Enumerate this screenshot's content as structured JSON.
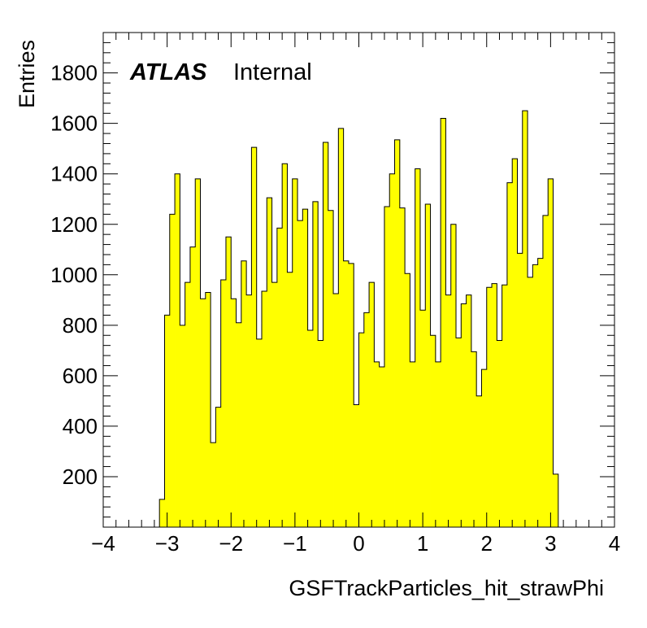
{
  "chart_data": {
    "type": "histogram",
    "xlabel": "GSFTrackParticles_hit_strawPhi",
    "ylabel": "Entries",
    "label_bold": "ATLAS",
    "label_normal": "Internal",
    "xlim": [
      -4,
      4
    ],
    "ylim": [
      0,
      1960
    ],
    "x_ticks": [
      -4,
      -3,
      -2,
      -1,
      0,
      1,
      2,
      3,
      4
    ],
    "x_tick_labels": [
      "−4",
      "−3",
      "−2",
      "−1",
      "0",
      "1",
      "2",
      "3",
      "4"
    ],
    "y_ticks": [
      200,
      400,
      600,
      800,
      1000,
      1200,
      1400,
      1600,
      1800
    ],
    "y_tick_labels": [
      "200",
      "400",
      "600",
      "800",
      "1000",
      "1200",
      "1400",
      "1600",
      "1800"
    ],
    "bin_start": -4,
    "bin_width": 0.08,
    "values": [
      0,
      0,
      0,
      0,
      0,
      0,
      0,
      0,
      0,
      0,
      0,
      110,
      840,
      1240,
      1400,
      800,
      970,
      1110,
      1380,
      905,
      930,
      335,
      475,
      980,
      1150,
      905,
      810,
      1055,
      920,
      1505,
      745,
      935,
      1305,
      970,
      1185,
      1440,
      1010,
      1380,
      1215,
      1260,
      780,
      1290,
      740,
      1525,
      1255,
      925,
      1580,
      1055,
      1045,
      485,
      770,
      850,
      970,
      655,
      635,
      1270,
      1400,
      1535,
      1265,
      1005,
      655,
      1420,
      860,
      1280,
      760,
      655,
      1620,
      920,
      1200,
      750,
      885,
      920,
      695,
      520,
      625,
      950,
      965,
      740,
      960,
      1365,
      1460,
      1085,
      1650,
      990,
      1040,
      1065,
      1235,
      1380,
      210,
      0,
      0,
      0,
      0,
      0,
      0,
      0,
      0,
      0,
      0,
      0
    ],
    "colors": {
      "fill": "#ffff00",
      "line": "#000000"
    }
  }
}
